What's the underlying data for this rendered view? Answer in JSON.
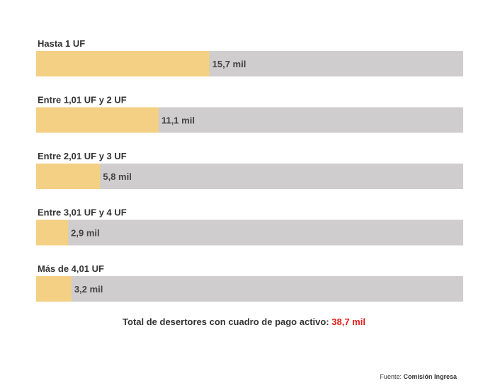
{
  "chart_data": {
    "type": "bar",
    "orientation": "horizontal",
    "categories": [
      "Hasta 1 UF",
      "Entre 1,01 UF y 2 UF",
      "Entre 2,01 UF y 3 UF",
      "Entre 3,01 UF y 4 UF",
      "Más de 4,01 UF"
    ],
    "values": [
      15.7,
      11.1,
      5.8,
      2.9,
      3.2
    ],
    "value_labels": [
      "15,7 mil",
      "11,1 mil",
      "5,8 mil",
      "2,9 mil",
      "3,2 mil"
    ],
    "xlim": [
      0,
      38.7
    ],
    "grid": false,
    "legend": "none",
    "colors": {
      "bar": "#f3d084",
      "track": "#cfcdcd"
    }
  },
  "total": {
    "label": "Total de desertores con cuadro de pago activo:",
    "value": "38,7 mil",
    "highlight_color": "#e0201a"
  },
  "source": {
    "prefix": "Fuente:",
    "name": "Comisión Ingresa"
  }
}
